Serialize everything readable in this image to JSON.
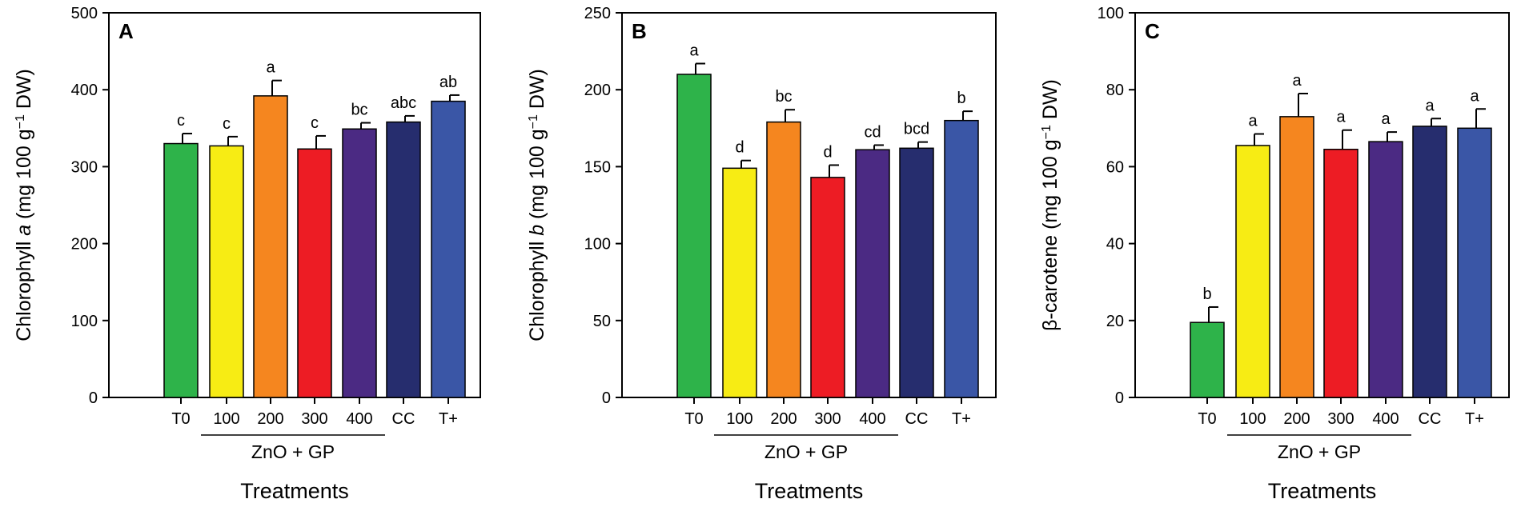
{
  "figure": {
    "shared": {
      "xlabel": "Treatments",
      "group_label": "ZnO + GP",
      "categories": [
        "T0",
        "100",
        "200",
        "300",
        "400",
        "CC",
        "T+"
      ],
      "colors": [
        "#2eb34a",
        "#f7ec14",
        "#f5861f",
        "#ed1c24",
        "#4b2a83",
        "#262d6e",
        "#3a56a6"
      ]
    }
  },
  "chart_data": [
    {
      "type": "bar",
      "panel": "A",
      "title": "A",
      "categories": [
        "T0",
        "100",
        "200",
        "300",
        "400",
        "CC",
        "T+"
      ],
      "values": [
        330,
        327,
        392,
        323,
        349,
        358,
        385
      ],
      "errors": [
        13,
        12,
        20,
        17,
        8,
        8,
        8
      ],
      "significance": [
        "c",
        "c",
        "a",
        "c",
        "bc",
        "abc",
        "ab"
      ],
      "ylabel_pre": "Chlorophyll ",
      "ylabel_var": "a",
      "ylabel_post": " (mg 100 g",
      "ylabel_sup": "−1",
      "ylabel_end": " DW)",
      "xlabel": "Treatments",
      "ylim": [
        0,
        500
      ],
      "yticks": [
        0,
        100,
        200,
        300,
        400,
        500
      ]
    },
    {
      "type": "bar",
      "panel": "B",
      "title": "B",
      "categories": [
        "T0",
        "100",
        "200",
        "300",
        "400",
        "CC",
        "T+"
      ],
      "values": [
        210,
        149,
        179,
        143,
        161,
        162,
        180
      ],
      "errors": [
        7,
        5,
        8,
        8,
        3,
        4,
        6
      ],
      "significance": [
        "a",
        "d",
        "bc",
        "d",
        "cd",
        "bcd",
        "b"
      ],
      "ylabel_pre": "Chlorophyll ",
      "ylabel_var": "b",
      "ylabel_post": " (mg 100 g",
      "ylabel_sup": "−1",
      "ylabel_end": " DW)",
      "xlabel": "Treatments",
      "ylim": [
        0,
        250
      ],
      "yticks": [
        0,
        50,
        100,
        150,
        200,
        250
      ]
    },
    {
      "type": "bar",
      "panel": "C",
      "title": "C",
      "categories": [
        "T0",
        "100",
        "200",
        "300",
        "400",
        "CC",
        "T+"
      ],
      "values": [
        19.5,
        65.5,
        73,
        64.5,
        66.5,
        70.5,
        70
      ],
      "errors": [
        4,
        3,
        6,
        5,
        2.5,
        2,
        5
      ],
      "significance": [
        "b",
        "a",
        "a",
        "a",
        "a",
        "a",
        "a"
      ],
      "ylabel_pre": "β-carotene",
      "ylabel_var": "",
      "ylabel_post": " (mg 100 g",
      "ylabel_sup": "−1",
      "ylabel_end": " DW)",
      "xlabel": "Treatments",
      "ylim": [
        0,
        100
      ],
      "yticks": [
        0,
        20,
        40,
        60,
        80,
        100
      ]
    }
  ]
}
